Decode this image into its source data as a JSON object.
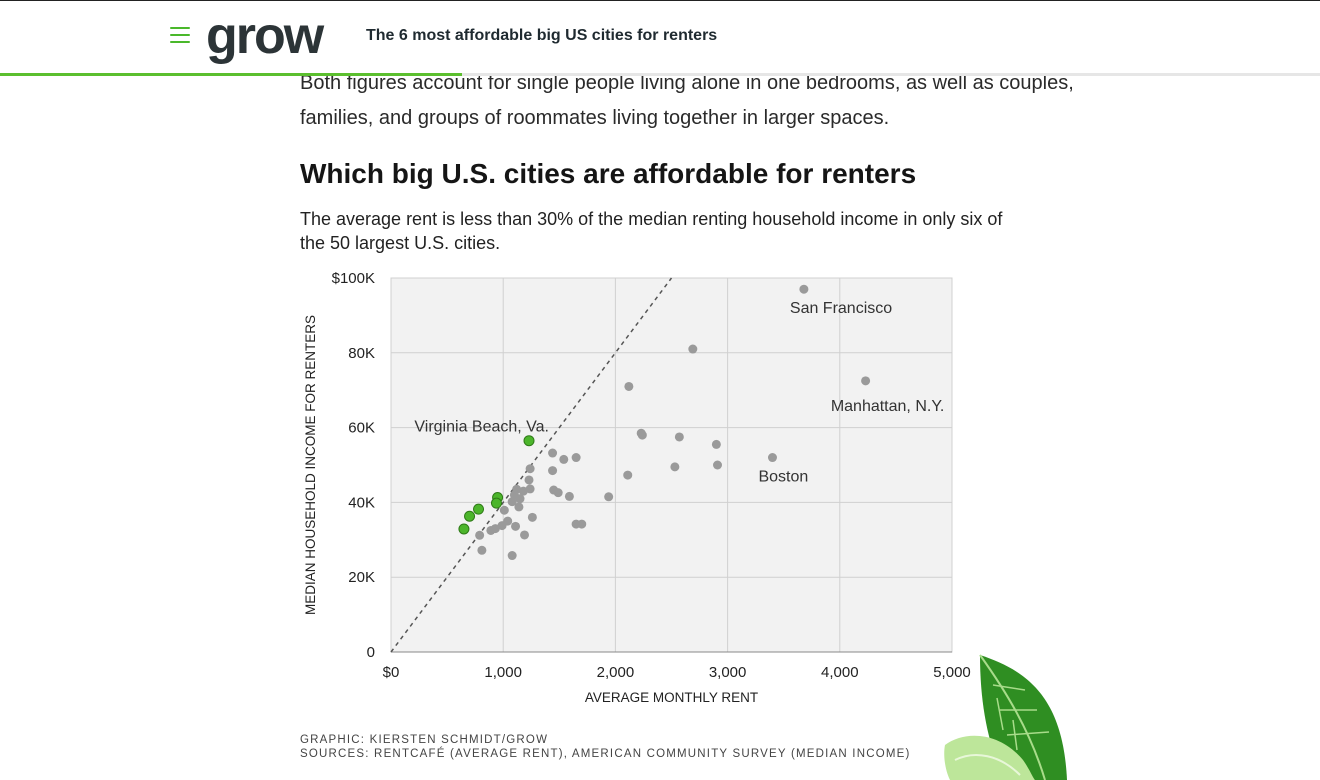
{
  "header": {
    "logo_text": "grow",
    "article_title": "The 6 most affordable big US cities for renters",
    "reading_progress": 0.35,
    "accent_color": "#5bbf2e"
  },
  "article": {
    "body_text": "Both figures account for single people living alone in one bedrooms, as well as couples, families, and groups of roommates living together in larger spaces.",
    "section_heading": "Which big U.S. cities are affordable for renters",
    "chart_subtitle": "The average rent is less than 30% of the median renting household income in only six of the 50 largest U.S. cities.",
    "credit_line": "GRAPHIC: KIERSTEN SCHMIDT/GROW",
    "sources_line": "SOURCES: RENTCAFÉ (AVERAGE RENT), AMERICAN COMMUNITY SURVEY (MEDIAN INCOME)"
  },
  "chart_data": {
    "type": "scatter",
    "xlabel": "AVERAGE MONTHLY RENT",
    "ylabel": "MEDIAN HOUSEHOLD INCOME FOR RENTERS",
    "xlim": [
      0,
      5000
    ],
    "ylim": [
      0,
      100000
    ],
    "x_ticks": [
      {
        "v": 0,
        "label": "$0"
      },
      {
        "v": 1000,
        "label": "1,000"
      },
      {
        "v": 2000,
        "label": "2,000"
      },
      {
        "v": 3000,
        "label": "3,000"
      },
      {
        "v": 4000,
        "label": "4,000"
      },
      {
        "v": 5000,
        "label": "5,000"
      }
    ],
    "y_ticks": [
      {
        "v": 0,
        "label": "0"
      },
      {
        "v": 20000,
        "label": "20K"
      },
      {
        "v": 40000,
        "label": "40K"
      },
      {
        "v": 60000,
        "label": "60K"
      },
      {
        "v": 80000,
        "label": "80K"
      },
      {
        "v": 100000,
        "label": "$100K"
      }
    ],
    "grid": true,
    "reference_line": {
      "style": "dashed",
      "from": [
        0,
        0
      ],
      "to": [
        2500,
        100000
      ]
    },
    "colors": {
      "affordable": "#4cb52b",
      "other": "#9a9a9a",
      "background": "#f2f2f2"
    },
    "series": [
      {
        "affordable": true,
        "points": [
          [
            1230,
            56500
          ],
          [
            950,
            41300
          ],
          [
            940,
            39800
          ],
          [
            780,
            38200
          ],
          [
            700,
            36300
          ],
          [
            650,
            32900
          ]
        ]
      },
      {
        "affordable": false,
        "points": [
          [
            3680,
            97000
          ],
          [
            4230,
            72500
          ],
          [
            3400,
            52000
          ],
          [
            2690,
            81000
          ],
          [
            2120,
            71000
          ],
          [
            2230,
            58500
          ],
          [
            2240,
            58000
          ],
          [
            2570,
            57500
          ],
          [
            2900,
            55500
          ],
          [
            2530,
            49500
          ],
          [
            2910,
            50000
          ],
          [
            2110,
            47300
          ],
          [
            1940,
            41500
          ],
          [
            1650,
            52000
          ],
          [
            1440,
            53200
          ],
          [
            1540,
            51500
          ],
          [
            1440,
            48500
          ],
          [
            1240,
            49000
          ],
          [
            1230,
            46000
          ],
          [
            1120,
            43500
          ],
          [
            1180,
            43000
          ],
          [
            1240,
            43600
          ],
          [
            1450,
            43300
          ],
          [
            1490,
            42600
          ],
          [
            1590,
            41600
          ],
          [
            1100,
            42000
          ],
          [
            1150,
            41000
          ],
          [
            1080,
            40200
          ],
          [
            1140,
            38800
          ],
          [
            1010,
            37900
          ],
          [
            1260,
            36000
          ],
          [
            1040,
            35000
          ],
          [
            1110,
            33600
          ],
          [
            1650,
            34200
          ],
          [
            1700,
            34200
          ],
          [
            990,
            33800
          ],
          [
            930,
            33000
          ],
          [
            890,
            32500
          ],
          [
            1190,
            31300
          ],
          [
            790,
            31200
          ],
          [
            810,
            27200
          ],
          [
            1080,
            25800
          ]
        ]
      }
    ],
    "annotations": [
      {
        "text": "San Francisco",
        "x": 3680,
        "y": 97000,
        "anchor": "below-right"
      },
      {
        "text": "Manhattan, N.Y.",
        "x": 4230,
        "y": 72500,
        "anchor": "below"
      },
      {
        "text": "Boston",
        "x": 3400,
        "y": 52000,
        "anchor": "below-right"
      },
      {
        "text": "Virginia Beach, Va.",
        "x": 1230,
        "y": 56500,
        "anchor": "above-left"
      }
    ]
  }
}
